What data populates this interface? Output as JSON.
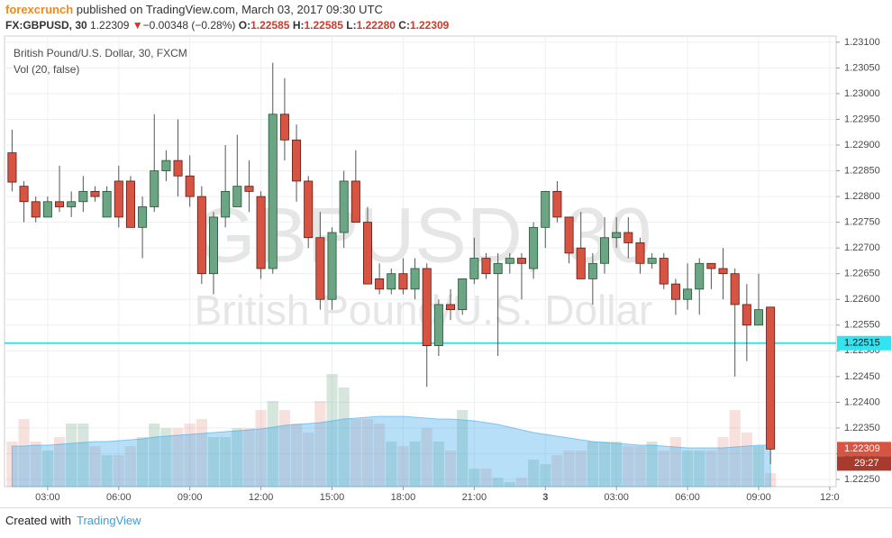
{
  "header": {
    "publisher": "forexcrunch",
    "published": "published on TradingView.com, March 03, 2017 09:30 UTC",
    "symbol": "FX:GBPUSD, 30",
    "last": "1.22309",
    "arrow": "▼",
    "change": "−0.00348 (−0.28%)",
    "o_label": "O:",
    "o": "1.22585",
    "h_label": "H:",
    "h": "1.22585",
    "l_label": "L:",
    "l": "1.22280",
    "c_label": "C:",
    "c": "1.22309"
  },
  "chart_data": {
    "type": "candlestick",
    "title": "British Pound/U.S. Dollar, 30, FXCM",
    "subtitle": "Vol (20, false)",
    "watermark": "GBPUSD, 30",
    "watermark_sub": "British Pound/U.S. Dollar",
    "x": [
      1.5,
      2,
      2.5,
      3,
      3.5,
      4,
      4.5,
      5,
      5.5,
      6,
      6.5,
      7,
      7.5,
      8,
      8.5,
      9,
      9.5,
      10,
      10.5,
      11,
      11.5,
      12,
      12.5,
      13,
      13.5,
      14,
      14.5,
      15,
      15.5,
      16,
      16.5,
      17,
      17.5,
      18,
      18.5,
      19,
      19.5,
      20,
      20.5,
      21,
      21.5,
      22,
      22.5,
      23,
      23.5,
      24,
      24.5,
      25,
      25.5,
      26,
      26.5,
      27,
      27.5,
      28,
      28.5,
      29,
      29.5,
      30,
      30.5,
      31,
      31.5,
      32,
      32.5,
      33,
      33.5
    ],
    "open": [
      1.22885,
      1.2282,
      1.2279,
      1.2276,
      1.2279,
      1.2278,
      1.2279,
      1.2281,
      1.2276,
      1.2283,
      1.2283,
      1.2274,
      1.2278,
      1.2285,
      1.2287,
      1.2284,
      1.228,
      1.2265,
      1.2276,
      1.2278,
      1.2282,
      1.228,
      1.2266,
      1.2296,
      1.2291,
      1.2283,
      1.2272,
      1.226,
      1.2273,
      1.2283,
      1.2275,
      1.2264,
      1.2262,
      1.2265,
      1.2262,
      1.2266,
      1.2251,
      1.2259,
      1.2258,
      1.2264,
      1.2268,
      1.2265,
      1.2267,
      1.2268,
      1.2266,
      1.2274,
      1.2281,
      1.2276,
      1.227,
      1.2264,
      1.2267,
      1.2272,
      1.2273,
      1.2271,
      1.2267,
      1.2268,
      1.2263,
      1.226,
      1.2262,
      1.2267,
      1.2266,
      1.2265,
      1.2259,
      1.2255,
      1.22585
    ],
    "high": [
      1.2293,
      1.2283,
      1.228,
      1.228,
      1.2286,
      1.2281,
      1.2284,
      1.2282,
      1.2282,
      1.2286,
      1.2284,
      1.228,
      1.2296,
      1.2289,
      1.2295,
      1.2288,
      1.2282,
      1.2277,
      1.229,
      1.2292,
      1.2287,
      1.2281,
      1.2306,
      1.2303,
      1.2294,
      1.2284,
      1.2277,
      1.2274,
      1.2285,
      1.2289,
      1.2278,
      1.2267,
      1.2266,
      1.2268,
      1.2268,
      1.2267,
      1.226,
      1.2262,
      1.2264,
      1.2272,
      1.2269,
      1.2269,
      1.2269,
      1.2269,
      1.2275,
      1.2281,
      1.2283,
      1.2276,
      1.2277,
      1.2269,
      1.2276,
      1.2276,
      1.2276,
      1.2272,
      1.2269,
      1.2269,
      1.2264,
      1.2267,
      1.2268,
      1.2267,
      1.227,
      1.2266,
      1.2263,
      1.2265,
      1.22585
    ],
    "low": [
      1.2281,
      1.2275,
      1.2275,
      1.2276,
      1.2277,
      1.2276,
      1.2277,
      1.2279,
      1.2276,
      1.2274,
      1.2274,
      1.2268,
      1.2277,
      1.2283,
      1.228,
      1.2278,
      1.2263,
      1.2261,
      1.2274,
      1.2278,
      1.2277,
      1.2264,
      1.2265,
      1.2287,
      1.2279,
      1.227,
      1.2258,
      1.2258,
      1.227,
      1.2275,
      1.2263,
      1.2261,
      1.2261,
      1.2261,
      1.226,
      1.2243,
      1.2249,
      1.2256,
      1.2257,
      1.2263,
      1.2264,
      1.2249,
      1.2265,
      1.226,
      1.2264,
      1.227,
      1.2275,
      1.2267,
      1.2264,
      1.2259,
      1.2265,
      1.227,
      1.2268,
      1.2265,
      1.2266,
      1.2262,
      1.2257,
      1.2258,
      1.2257,
      1.2262,
      1.226,
      1.2245,
      1.2248,
      1.2255,
      1.2228
    ],
    "close": [
      1.22828,
      1.2279,
      1.2276,
      1.2279,
      1.2278,
      1.2279,
      1.2281,
      1.228,
      1.2281,
      1.2276,
      1.2274,
      1.2278,
      1.2285,
      1.2287,
      1.2284,
      1.228,
      1.2265,
      1.2276,
      1.2281,
      1.2282,
      1.2281,
      1.2266,
      1.2296,
      1.2291,
      1.2283,
      1.2272,
      1.226,
      1.2273,
      1.2283,
      1.2275,
      1.2263,
      1.2262,
      1.2265,
      1.2262,
      1.2266,
      1.2251,
      1.2259,
      1.2258,
      1.2264,
      1.2268,
      1.2265,
      1.2267,
      1.2268,
      1.2267,
      1.2274,
      1.2281,
      1.2276,
      1.2269,
      1.2264,
      1.2267,
      1.2272,
      1.2273,
      1.2271,
      1.2267,
      1.2268,
      1.2263,
      1.226,
      1.2262,
      1.2267,
      1.2266,
      1.2265,
      1.2259,
      1.2255,
      1.2258,
      1.22309
    ],
    "volume": [
      50,
      75,
      50,
      40,
      55,
      70,
      70,
      45,
      35,
      35,
      45,
      55,
      70,
      65,
      65,
      70,
      75,
      55,
      55,
      65,
      65,
      85,
      95,
      85,
      70,
      60,
      95,
      125,
      110,
      75,
      75,
      70,
      50,
      45,
      50,
      65,
      50,
      40,
      85,
      20,
      20,
      10,
      5,
      10,
      30,
      25,
      35,
      40,
      40,
      50,
      50,
      50,
      45,
      45,
      50,
      40,
      55,
      40,
      40,
      40,
      55,
      85,
      60,
      45,
      15
    ],
    "volume_ma": [
      45,
      45,
      46,
      46,
      47,
      48,
      49,
      50,
      50,
      51,
      52,
      53,
      55,
      56,
      57,
      58,
      59,
      60,
      61,
      62,
      63,
      64,
      66,
      68,
      69,
      70,
      71,
      73,
      75,
      76,
      77,
      78,
      78,
      78,
      77,
      76,
      75,
      75,
      74,
      73,
      71,
      69,
      66,
      63,
      60,
      58,
      56,
      54,
      52,
      50,
      49,
      48,
      47,
      46,
      46,
      45,
      44,
      43,
      43,
      43,
      43,
      44,
      45,
      46,
      46
    ],
    "vlim": [
      0,
      500
    ],
    "xlim": [
      1.18,
      36.27
    ],
    "xticks": [
      {
        "value": 3,
        "label": "03:00"
      },
      {
        "value": 6,
        "label": "06:00"
      },
      {
        "value": 9,
        "label": "09:00"
      },
      {
        "value": 12,
        "label": "12:00"
      },
      {
        "value": 15,
        "label": "15:00"
      },
      {
        "value": 18,
        "label": "18:00"
      },
      {
        "value": 21,
        "label": "21:00"
      },
      {
        "value": 24,
        "label": "3"
      },
      {
        "value": 27,
        "label": "03:00"
      },
      {
        "value": 30,
        "label": "06:00"
      },
      {
        "value": 33,
        "label": "09:00"
      },
      {
        "value": 36,
        "label": "12:0"
      }
    ],
    "ylim": [
      1.22236,
      1.23112
    ],
    "yticks": [
      {
        "value": 1.2225,
        "label": "1.22250"
      },
      {
        "value": 1.223,
        "label": "1.22300"
      },
      {
        "value": 1.2235,
        "label": "1.22350"
      },
      {
        "value": 1.224,
        "label": "1.22400"
      },
      {
        "value": 1.2245,
        "label": "1.22450"
      },
      {
        "value": 1.225,
        "label": "1.22500"
      },
      {
        "value": 1.2255,
        "label": "1.22550"
      },
      {
        "value": 1.226,
        "label": "1.22600"
      },
      {
        "value": 1.2265,
        "label": "1.22650"
      },
      {
        "value": 1.227,
        "label": "1.22700"
      },
      {
        "value": 1.2275,
        "label": "1.22750"
      },
      {
        "value": 1.228,
        "label": "1.22800"
      },
      {
        "value": 1.2285,
        "label": "1.22850"
      },
      {
        "value": 1.229,
        "label": "1.22900"
      },
      {
        "value": 1.2295,
        "label": "1.22950"
      },
      {
        "value": 1.23,
        "label": "1.23000"
      },
      {
        "value": 1.2305,
        "label": "1.23050"
      },
      {
        "value": 1.231,
        "label": "1.23100"
      }
    ],
    "hline": {
      "value": 1.22515,
      "label": "1.22515",
      "color": "#33e3f0"
    },
    "last_price": {
      "value": 1.22309,
      "label": "1.22309",
      "countdown": "29:27"
    },
    "grid": true,
    "up_color": "#6ba583",
    "up_border": "#225437",
    "down_color": "#d75442",
    "down_border": "#5b1a13",
    "vol_up_color": "rgba(107,165,131,0.28)",
    "vol_down_color": "rgba(215,84,66,0.18)",
    "ma_color": "rgba(66,170,235,0.38)"
  },
  "footer": {
    "created": "Created with",
    "brand": "TradingView"
  }
}
